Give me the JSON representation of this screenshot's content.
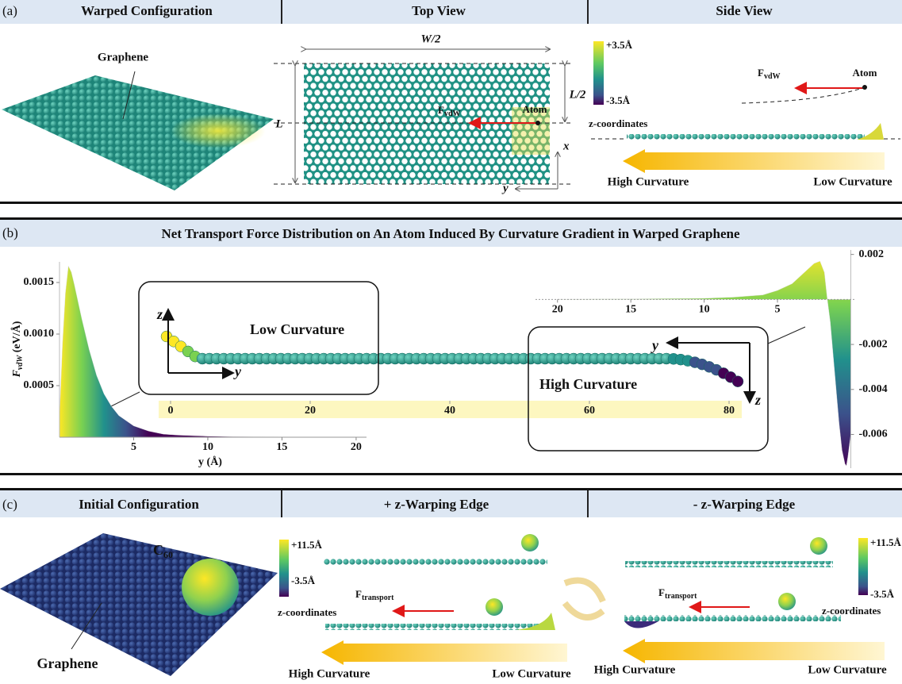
{
  "panel_a": {
    "label": "(a)",
    "headers": [
      "Warped Configuration",
      "Top View",
      "Side View"
    ],
    "graphene": "Graphene",
    "length": "L",
    "half_width": "W/2",
    "half_length": "L/2",
    "force": {
      "symbol": "F",
      "subscript": "vdW"
    },
    "atom": "Atom",
    "axis_x": "x",
    "axis_y": "y",
    "colorbar": {
      "max": "+3.5Å",
      "min": "-3.5Å",
      "title": "z-coordinates"
    },
    "high_curvature": "High Curvature",
    "low_curvature": "Low Curvature"
  },
  "panel_b": {
    "label": "(b)",
    "title": "Net Transport Force Distribution on An Atom Induced By Curvature Gradient in Warped Graphene",
    "low_curvature": "Low Curvature",
    "high_curvature": "High Curvature",
    "axis_z": "z",
    "axis_y": "y",
    "strip_ticks": [
      0,
      20,
      40,
      60,
      80
    ]
  },
  "chart_data": [
    {
      "type": "area",
      "ylabel": {
        "symbol": "F",
        "subscript": "vdW",
        "unit": " (eV/Å)"
      },
      "xlabel": "y (Å)",
      "x": [
        0,
        0.2,
        0.4,
        0.6,
        0.8,
        1,
        1.5,
        2,
        2.5,
        3,
        3.5,
        4,
        5,
        6,
        7,
        8,
        10,
        12,
        15,
        20
      ],
      "values": [
        0.0002,
        0.0009,
        0.0014,
        0.00166,
        0.0016,
        0.00148,
        0.00115,
        0.00085,
        0.0006,
        0.00042,
        0.0003,
        0.00021,
        0.00011,
        6e-05,
        3e-05,
        2e-05,
        1e-05,
        5e-06,
        2e-06,
        0
      ],
      "xlim": [
        0,
        20.7
      ],
      "ylim": [
        0,
        0.0017
      ],
      "xticks": [
        5,
        10,
        15,
        20
      ],
      "yticks": [
        0.0005,
        {
          "value": 0.001,
          "label": "0.0010"
        },
        0.0015
      ],
      "yaxis_side": "left",
      "gradient_axis": "x",
      "colors": [
        "#fde725",
        "#7ad151",
        "#21918c",
        "#3b528b",
        "#440154"
      ]
    },
    {
      "type": "area",
      "x": [
        20,
        15,
        10,
        8,
        6,
        5,
        4,
        3.5,
        3,
        2.5,
        2.1,
        1.8,
        1.6,
        1.4,
        1.2,
        1,
        0.8,
        0.6,
        0.4,
        0.3,
        0.2,
        0
      ],
      "values": [
        1e-05,
        2e-05,
        5e-05,
        0.0001,
        0.0002,
        0.0004,
        0.0007,
        0.001,
        0.0013,
        0.0016,
        0.0017,
        0.0012,
        0,
        -0.001,
        -0.0025,
        -0.004,
        -0.0055,
        -0.0067,
        -0.0073,
        -0.0074,
        -0.007,
        -0.006
      ],
      "xlim": [
        21.5,
        -0.3
      ],
      "ylim": [
        -0.0075,
        0.0022
      ],
      "xticks": [
        20,
        15,
        10,
        5
      ],
      "yticks": [
        0.002,
        -0.002,
        -0.004,
        -0.006
      ],
      "yaxis_side": "right",
      "gradient_axis": "y",
      "colors": [
        "#fde725",
        "#7ad151",
        "#21918c",
        "#3b528b",
        "#440154"
      ]
    }
  ],
  "panel_c": {
    "label": "(c)",
    "headers": [
      "Initial Configuration",
      "+ z-Warping Edge",
      "- z-Warping Edge"
    ],
    "molecule": {
      "symbol": "C",
      "subscript": "60"
    },
    "graphene": "Graphene",
    "colorbar": {
      "max": "+11.5Å",
      "min": "-3.5Å",
      "title": "z-coordinates"
    },
    "force": {
      "symbol": "F",
      "subscript": "transport"
    },
    "high_curvature": "High Curvature",
    "low_curvature": "Low Curvature"
  }
}
